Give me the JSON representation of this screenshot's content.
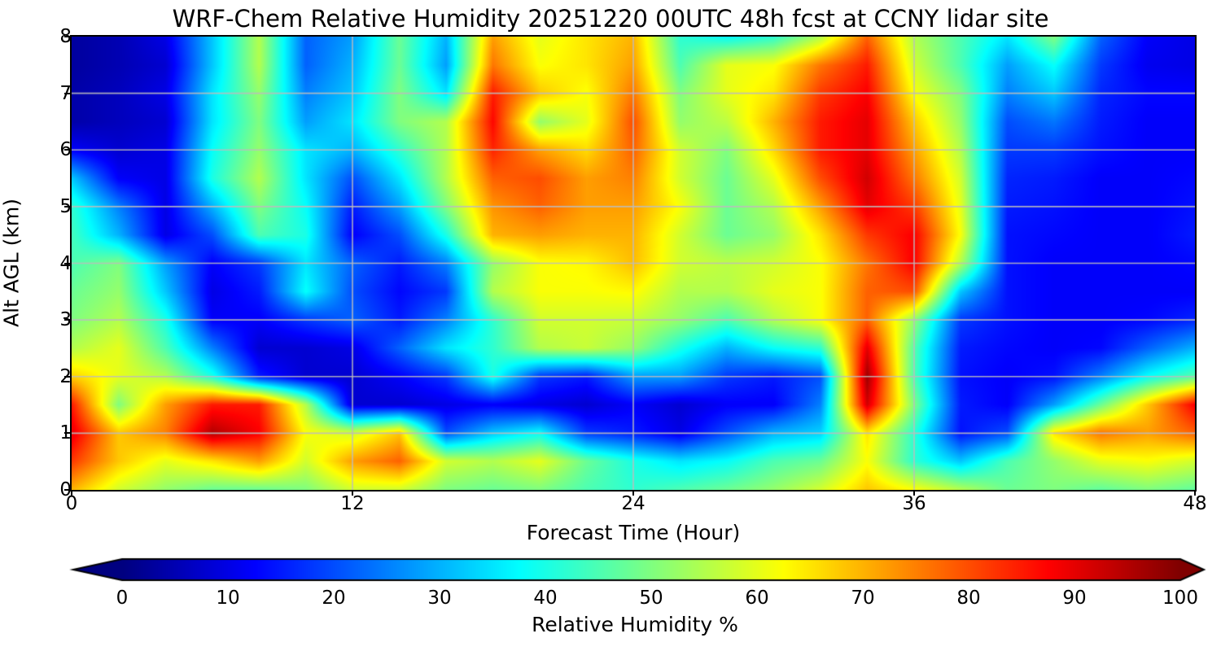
{
  "chart_data": {
    "type": "heatmap",
    "title": "WRF-Chem Relative Humidity 20251220 00UTC 48h fcst at CCNY lidar site",
    "xlabel": "Forecast Time (Hour)",
    "ylabel": "Alt AGL (km)",
    "xlim": [
      0,
      48
    ],
    "ylim": [
      0,
      8
    ],
    "x_ticks": [
      0,
      12,
      24,
      36,
      48
    ],
    "y_ticks": [
      0,
      1,
      2,
      3,
      4,
      5,
      6,
      7,
      8
    ],
    "grid": true,
    "gridline_color": "#bcbcbc",
    "colormap": "jet",
    "colorbar": {
      "label": "Relative Humidity %",
      "min": 0,
      "max": 100,
      "ticks": [
        0,
        10,
        20,
        30,
        40,
        50,
        60,
        70,
        80,
        90,
        100
      ],
      "extend": "both"
    },
    "x_hours": [
      0,
      2,
      4,
      6,
      8,
      10,
      12,
      14,
      16,
      18,
      20,
      22,
      24,
      26,
      28,
      30,
      32,
      34,
      36,
      38,
      40,
      42,
      44,
      46,
      48
    ],
    "y_alt_km_top_to_bottom": [
      8,
      7.5,
      7,
      6.5,
      6,
      5.5,
      5,
      4.5,
      4,
      3.5,
      3,
      2.5,
      2,
      1.5,
      1,
      0.5,
      0
    ],
    "values_rh_percent": [
      [
        3,
        5,
        10,
        32,
        55,
        22,
        28,
        48,
        30,
        72,
        60,
        65,
        70,
        42,
        38,
        42,
        55,
        78,
        55,
        45,
        35,
        50,
        22,
        12,
        10
      ],
      [
        3,
        5,
        8,
        32,
        55,
        22,
        30,
        48,
        28,
        76,
        62,
        65,
        72,
        45,
        60,
        62,
        76,
        85,
        58,
        45,
        28,
        38,
        18,
        11,
        10
      ],
      [
        4,
        6,
        10,
        35,
        52,
        25,
        32,
        50,
        35,
        85,
        68,
        62,
        76,
        50,
        60,
        65,
        82,
        88,
        62,
        50,
        25,
        32,
        16,
        13,
        13
      ],
      [
        4,
        6,
        8,
        35,
        50,
        28,
        35,
        50,
        55,
        87,
        52,
        60,
        80,
        52,
        56,
        70,
        85,
        90,
        68,
        52,
        20,
        24,
        15,
        12,
        12
      ],
      [
        12,
        8,
        10,
        38,
        52,
        35,
        30,
        42,
        55,
        84,
        72,
        66,
        78,
        58,
        50,
        66,
        85,
        90,
        72,
        55,
        18,
        18,
        14,
        12,
        12
      ],
      [
        32,
        12,
        10,
        40,
        55,
        35,
        20,
        35,
        55,
        78,
        80,
        72,
        75,
        58,
        48,
        60,
        80,
        92,
        76,
        58,
        16,
        15,
        12,
        12,
        13
      ],
      [
        42,
        25,
        10,
        30,
        50,
        38,
        15,
        28,
        50,
        73,
        78,
        72,
        72,
        62,
        48,
        55,
        72,
        90,
        82,
        60,
        15,
        14,
        12,
        12,
        14
      ],
      [
        44,
        30,
        10,
        20,
        45,
        40,
        12,
        20,
        40,
        70,
        72,
        70,
        70,
        58,
        48,
        52,
        65,
        82,
        88,
        62,
        14,
        13,
        12,
        12,
        15
      ],
      [
        45,
        50,
        28,
        12,
        18,
        35,
        22,
        15,
        25,
        52,
        62,
        63,
        69,
        58,
        56,
        58,
        62,
        76,
        88,
        55,
        14,
        12,
        12,
        12,
        13
      ],
      [
        48,
        52,
        32,
        10,
        15,
        38,
        20,
        13,
        18,
        55,
        62,
        62,
        63,
        55,
        55,
        60,
        62,
        78,
        80,
        32,
        14,
        12,
        12,
        12,
        12
      ],
      [
        50,
        55,
        40,
        12,
        12,
        18,
        22,
        15,
        25,
        42,
        58,
        58,
        57,
        52,
        45,
        55,
        62,
        78,
        52,
        18,
        14,
        12,
        12,
        13,
        16
      ],
      [
        55,
        60,
        45,
        25,
        8,
        8,
        10,
        22,
        35,
        42,
        55,
        57,
        52,
        40,
        30,
        38,
        42,
        90,
        46,
        15,
        13,
        12,
        13,
        22,
        30
      ],
      [
        67,
        60,
        55,
        40,
        15,
        8,
        8,
        12,
        18,
        40,
        18,
        15,
        28,
        28,
        18,
        15,
        20,
        97,
        45,
        14,
        12,
        14,
        25,
        38,
        46
      ],
      [
        85,
        50,
        72,
        85,
        85,
        55,
        8,
        8,
        10,
        12,
        10,
        8,
        12,
        8,
        12,
        12,
        25,
        92,
        50,
        15,
        12,
        28,
        48,
        68,
        88
      ],
      [
        90,
        68,
        75,
        95,
        88,
        62,
        58,
        68,
        20,
        32,
        38,
        18,
        15,
        10,
        20,
        30,
        33,
        65,
        42,
        14,
        20,
        65,
        76,
        72,
        78
      ],
      [
        82,
        68,
        60,
        65,
        72,
        58,
        72,
        78,
        58,
        55,
        60,
        48,
        40,
        35,
        38,
        45,
        48,
        62,
        42,
        32,
        45,
        52,
        60,
        62,
        58
      ],
      [
        70,
        58,
        52,
        48,
        48,
        50,
        58,
        58,
        50,
        48,
        50,
        45,
        42,
        45,
        48,
        52,
        58,
        68,
        62,
        55,
        48,
        50,
        47,
        50,
        47
      ]
    ]
  }
}
